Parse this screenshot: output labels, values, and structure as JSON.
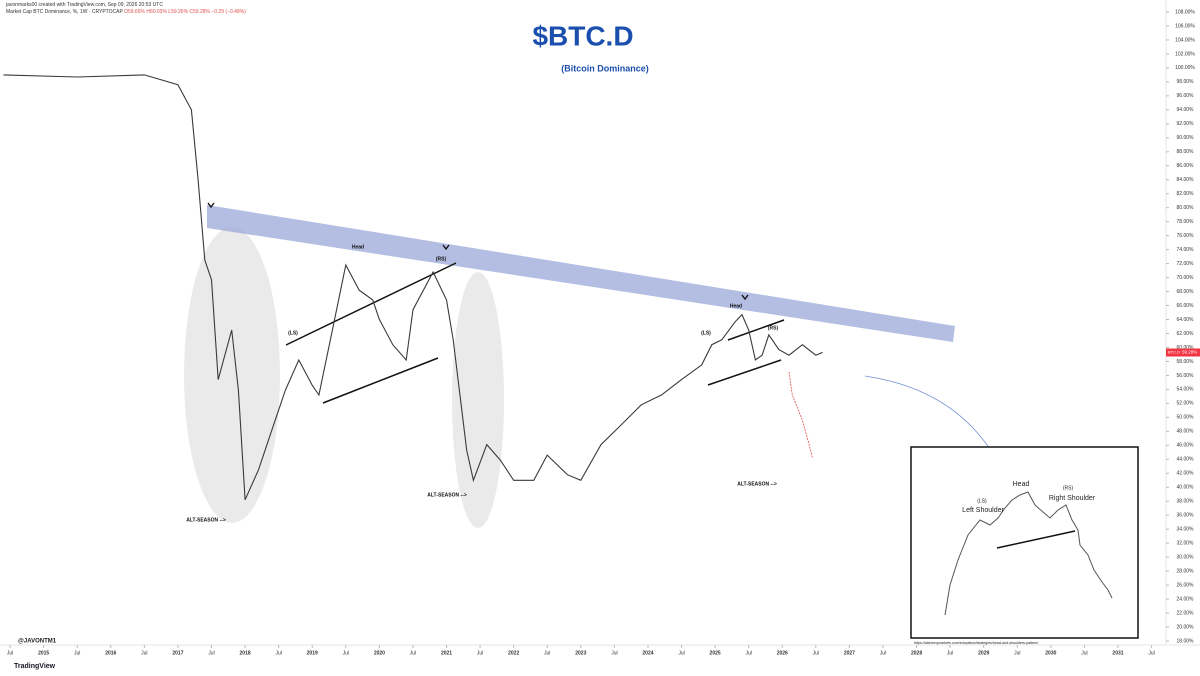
{
  "header": {
    "attribution": "javonmarks00 created with TradingView.com, Sep 09, 2026 20:53 UTC",
    "symbol": "Market Cap BTC Dominance, %, 1W · CRYPTOCAP",
    "ohlc": "O59.66% H60.03% L59.26% C59.28% −0.29 (−0.48%)"
  },
  "chart_data": {
    "type": "line",
    "title": "$BTC.D",
    "subtitle": "(Bitcoin Dominance)",
    "x": [
      2014.4,
      2015.5,
      2016.5,
      2017.0,
      2017.2,
      2017.3,
      2017.4,
      2017.5,
      2017.6,
      2017.8,
      2017.9,
      2018.0,
      2018.2,
      2018.4,
      2018.6,
      2018.8,
      2019.0,
      2019.1,
      2019.3,
      2019.5,
      2019.7,
      2019.9,
      2020.0,
      2020.2,
      2020.4,
      2020.5,
      2020.8,
      2021.0,
      2021.1,
      2021.3,
      2021.4,
      2021.6,
      2021.8,
      2022.0,
      2022.3,
      2022.5,
      2022.8,
      2023.0,
      2023.3,
      2023.6,
      2023.9,
      2024.2,
      2024.5,
      2024.8,
      2024.95,
      2025.1,
      2025.3,
      2025.4,
      2025.5,
      2025.6,
      2025.7,
      2025.8,
      2025.95,
      2026.1,
      2026.3,
      2026.5,
      2026.6
    ],
    "series": [
      {
        "name": "BTC.D",
        "color": "#3a3a3a",
        "values": [
          99.0,
          98.7,
          99.0,
          97.6,
          94,
          84,
          72.5,
          69.7,
          55.4,
          62.5,
          53.9,
          38.2,
          42.5,
          48.2,
          53.9,
          58.2,
          54.6,
          53.2,
          62.5,
          71.8,
          68.2,
          66.8,
          64,
          60.4,
          58.2,
          65.4,
          70.8,
          66.8,
          61.1,
          45.3,
          41.0,
          46.1,
          43.9,
          41.0,
          41.0,
          44.6,
          41.8,
          41.0,
          46.1,
          48.9,
          51.8,
          53.2,
          55.4,
          57.5,
          60.4,
          61.1,
          63.7,
          64.7,
          62.5,
          58.2,
          58.9,
          61.8,
          59.7,
          58.9,
          60.4,
          58.9,
          59.3
        ]
      }
    ],
    "projection": {
      "color": "#e0504a",
      "x": [
        2026.1,
        2026.15,
        2026.3,
        2026.4,
        2026.45
      ],
      "values": [
        56.5,
        53.2,
        49.6,
        46.1,
        44.2
      ]
    },
    "last_price": {
      "value": 59.28,
      "label": "59.28%"
    },
    "last_price_color": "#f23645",
    "xlim": [
      2014.35,
      2031.7
    ],
    "xticks": [
      {
        "value": 2014.5,
        "label": "Jul"
      },
      2015,
      {
        "value": 2015.5,
        "label": "Jul"
      },
      2016,
      {
        "value": 2016.5,
        "label": "Jul"
      },
      2017,
      {
        "value": 2017.5,
        "label": "Jul"
      },
      2018,
      {
        "value": 2018.5,
        "label": "Jul"
      },
      2019,
      {
        "value": 2019.5,
        "label": "Jul"
      },
      2020,
      {
        "value": 2020.5,
        "label": "Jul"
      },
      2021,
      {
        "value": 2021.5,
        "label": "Jul"
      },
      2022,
      {
        "value": 2022.5,
        "label": "Jul"
      },
      2023,
      {
        "value": 2023.5,
        "label": "Jul"
      },
      2024,
      {
        "value": 2024.5,
        "label": "Jul"
      },
      2025,
      {
        "value": 2025.5,
        "label": "Jul"
      },
      2026,
      {
        "value": 2026.5,
        "label": "Jul"
      },
      2027,
      {
        "value": 2027.5,
        "label": "Jul"
      },
      2028,
      {
        "value": 2028.5,
        "label": "Jul"
      },
      2029,
      {
        "value": 2029.5,
        "label": "Jul"
      },
      2030,
      {
        "value": 2030.5,
        "label": "Jul"
      },
      2031,
      {
        "value": 2031.5,
        "label": "Jul"
      }
    ],
    "ylim": [
      18,
      108
    ],
    "yticks": [
      {
        "value": 18,
        "label": "18.00%"
      },
      {
        "value": 20,
        "label": "20.00%"
      },
      {
        "value": 22,
        "label": "22.00%"
      },
      {
        "value": 24,
        "label": "24.00%"
      },
      {
        "value": 26,
        "label": "26.00%"
      },
      {
        "value": 28,
        "label": "28.00%"
      },
      {
        "value": 30,
        "label": "30.00%"
      },
      {
        "value": 32,
        "label": "32.00%"
      },
      {
        "value": 34,
        "label": "34.00%"
      },
      {
        "value": 36,
        "label": "36.00%"
      },
      {
        "value": 38,
        "label": "38.00%"
      },
      {
        "value": 40,
        "label": "40.00%"
      },
      {
        "value": 42,
        "label": "42.00%"
      },
      {
        "value": 44,
        "label": "44.00%"
      },
      {
        "value": 46,
        "label": "46.00%"
      },
      {
        "value": 48,
        "label": "48.00%"
      },
      {
        "value": 50,
        "label": "50.00%"
      },
      {
        "value": 52,
        "label": "52.00%"
      },
      {
        "value": 54,
        "label": "54.00%"
      },
      {
        "value": 56,
        "label": "56.00%"
      },
      {
        "value": 58,
        "label": "58.00%"
      },
      {
        "value": 60,
        "label": "60.00%"
      },
      {
        "value": 62,
        "label": "62.00%"
      },
      {
        "value": 64,
        "label": "64.00%"
      },
      {
        "value": 66,
        "label": "66.00%"
      },
      {
        "value": 68,
        "label": "68.00%"
      },
      {
        "value": 70,
        "label": "70.00%"
      },
      {
        "value": 72,
        "label": "72.00%"
      },
      {
        "value": 74,
        "label": "74.00%"
      },
      {
        "value": 76,
        "label": "76.00%"
      },
      {
        "value": 78,
        "label": "78.00%"
      },
      {
        "value": 80,
        "label": "80.00%"
      },
      {
        "value": 82,
        "label": "82.00%"
      },
      {
        "value": 84,
        "label": "84.00%"
      },
      {
        "value": 86,
        "label": "86.00%"
      },
      {
        "value": 88,
        "label": "88.00%"
      },
      {
        "value": 90,
        "label": "90.00%"
      },
      {
        "value": 92,
        "label": "92.00%"
      },
      {
        "value": 94,
        "label": "94.00%"
      },
      {
        "value": 96,
        "label": "96.00%"
      },
      {
        "value": 98,
        "label": "98.00%"
      },
      {
        "value": 100,
        "label": "100.00%"
      },
      {
        "value": 102,
        "label": "102.00%"
      },
      {
        "value": 104,
        "label": "104.00%"
      },
      {
        "value": 106,
        "label": "106.00%"
      },
      {
        "value": 108,
        "label": "108.00%"
      }
    ],
    "annotations": [
      "Head",
      "(RS)",
      "(LS)",
      "ALT-SEASON -->",
      "ALT-SEASON -->",
      "ALT-SEASON -->",
      "Head",
      "(LS)",
      "(RS)"
    ],
    "inset": {
      "labels": [
        "Head",
        "(LS)",
        "Left Shoulder",
        "(RS)",
        "Right Shoulder"
      ],
      "source": "https://alchemymarkets.com/education/strategies/head-and-shoulders-pattern/"
    },
    "watermark": "@JAVONTM1",
    "brand": "TradingView"
  }
}
